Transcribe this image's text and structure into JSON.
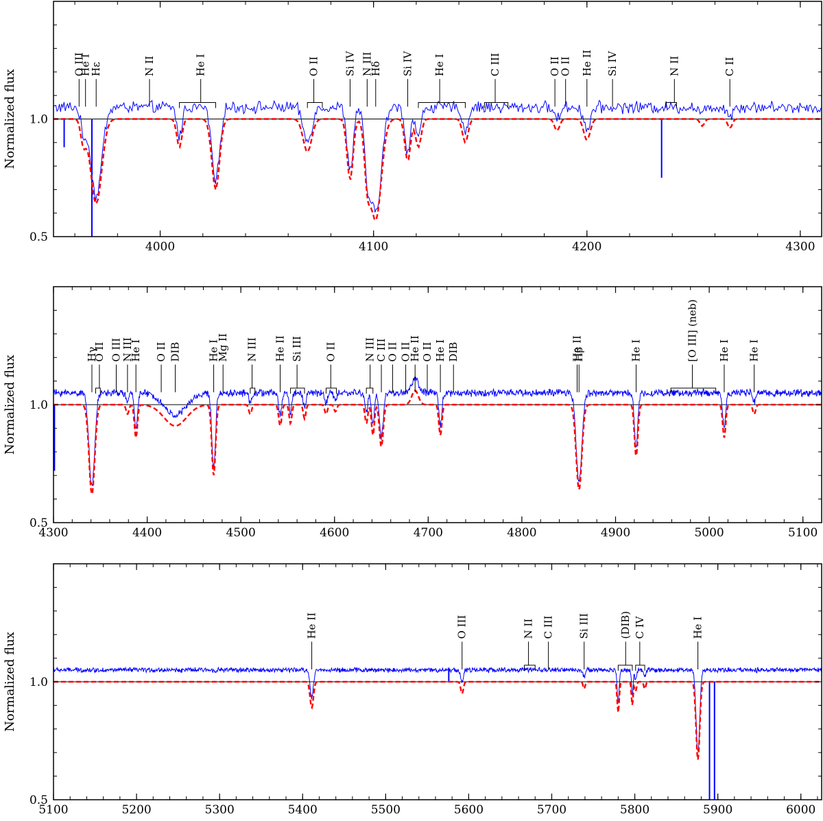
{
  "chart_data": [
    {
      "type": "line",
      "ylabel": "Normalized flux",
      "xlim": [
        3950,
        4310
      ],
      "ylim": [
        0.5,
        1.5
      ],
      "x_ticks": [
        4000,
        4100,
        4200,
        4300
      ],
      "y_ticks": [
        0.5,
        1.0
      ],
      "y_tick_labels": [
        "0.5",
        "1.0"
      ],
      "reference_level": 1.0,
      "series": [
        {
          "color": "#0000ff",
          "style": "solid"
        },
        {
          "color": "#ff0000",
          "style": "dashed"
        }
      ],
      "features": [
        {
          "center": 4026,
          "depth": 0.3,
          "width": 1.8
        },
        {
          "center": 3970,
          "depth": 0.36,
          "width": 2.6
        },
        {
          "center": 4101,
          "depth": 0.43,
          "width": 2.6
        },
        {
          "center": 4089,
          "depth": 0.26,
          "width": 1.4
        },
        {
          "center": 4097,
          "depth": 0.2,
          "width": 1.3
        },
        {
          "center": 4116,
          "depth": 0.18,
          "width": 1.3
        },
        {
          "center": 4121,
          "depth": 0.12,
          "width": 1.3
        },
        {
          "center": 4069,
          "depth": 0.14,
          "width": 2.0
        },
        {
          "center": 4009,
          "depth": 0.12,
          "width": 1.2
        },
        {
          "center": 4143,
          "depth": 0.1,
          "width": 1.3
        },
        {
          "center": 4200,
          "depth": 0.09,
          "width": 1.5
        },
        {
          "center": 4186,
          "depth": 0.05,
          "width": 1.2
        },
        {
          "center": 3964,
          "depth": 0.1,
          "width": 1.2
        },
        {
          "center": 4267,
          "depth": 0.04,
          "width": 1.0
        },
        {
          "center": 4254,
          "depth": 0.03,
          "width": 1.0
        }
      ],
      "glitches": [
        {
          "x": 3968,
          "y": 0.47
        },
        {
          "x": 4235,
          "y": 0.75
        },
        {
          "x": 3955,
          "y": 0.88
        }
      ],
      "noise_scale": 0.02,
      "annotations": [
        {
          "label": "O III",
          "x": 3962
        },
        {
          "label": "He I",
          "x": 3965
        },
        {
          "label": "Hε",
          "x": 3970
        },
        {
          "label": "N II",
          "x": 3995
        },
        {
          "label": "He I",
          "x": 4019,
          "range": [
            4009,
            4026
          ]
        },
        {
          "label": "O II",
          "x": 4072,
          "range": [
            4069,
            4076
          ]
        },
        {
          "label": "Si IV",
          "x": 4089
        },
        {
          "label": "N III",
          "x": 4097
        },
        {
          "label": "Hδ",
          "x": 4101
        },
        {
          "label": "Si IV",
          "x": 4116
        },
        {
          "label": "He I",
          "x": 4131,
          "range": [
            4121,
            4143
          ]
        },
        {
          "label": "C III",
          "x": 4157,
          "range": [
            4152,
            4163
          ]
        },
        {
          "label": "O II",
          "x": 4185
        },
        {
          "label": "O II",
          "x": 4190
        },
        {
          "label": "He II",
          "x": 4200
        },
        {
          "label": "Si IV",
          "x": 4212
        },
        {
          "label": "N II",
          "x": 4241,
          "range": [
            4237,
            4242
          ]
        },
        {
          "label": "C II",
          "x": 4267
        }
      ]
    },
    {
      "type": "line",
      "ylabel": "Normalized flux",
      "xlim": [
        4300,
        5120
      ],
      "ylim": [
        0.5,
        1.5
      ],
      "x_ticks": [
        4300,
        4400,
        4500,
        4600,
        4700,
        4800,
        4900,
        5000,
        5100
      ],
      "y_ticks": [
        0.5,
        1.0
      ],
      "y_tick_labels": [
        "0.5",
        "1.0"
      ],
      "reference_level": 1.0,
      "series": [
        {
          "color": "#0000ff",
          "style": "solid"
        },
        {
          "color": "#ff0000",
          "style": "dashed"
        }
      ],
      "features": [
        {
          "center": 4341,
          "depth": 0.38,
          "width": 3.0
        },
        {
          "center": 4471,
          "depth": 0.3,
          "width": 2.0
        },
        {
          "center": 4861,
          "depth": 0.36,
          "width": 3.0
        },
        {
          "center": 4922,
          "depth": 0.22,
          "width": 1.8
        },
        {
          "center": 5016,
          "depth": 0.14,
          "width": 1.6
        },
        {
          "center": 4388,
          "depth": 0.14,
          "width": 1.6
        },
        {
          "center": 4713,
          "depth": 0.13,
          "width": 1.6
        },
        {
          "center": 4650,
          "depth": 0.18,
          "width": 2.0
        },
        {
          "center": 4641,
          "depth": 0.13,
          "width": 1.5
        },
        {
          "center": 4634,
          "depth": 0.08,
          "width": 1.5
        },
        {
          "center": 4542,
          "depth": 0.09,
          "width": 1.6
        },
        {
          "center": 4553,
          "depth": 0.08,
          "width": 1.4
        },
        {
          "center": 4568,
          "depth": 0.06,
          "width": 1.4
        },
        {
          "center": 4430,
          "depth": 0.09,
          "width": 12.0
        },
        {
          "center": 4686,
          "depth": -0.06,
          "width": 3.5
        },
        {
          "center": 5048,
          "depth": 0.04,
          "width": 1.5
        },
        {
          "center": 4379,
          "depth": 0.04,
          "width": 1.5
        },
        {
          "center": 4510,
          "depth": 0.04,
          "width": 1.5
        },
        {
          "center": 4591,
          "depth": 0.04,
          "width": 1.5
        },
        {
          "center": 4601,
          "depth": 0.03,
          "width": 1.5
        }
      ],
      "glitches": [
        {
          "x": 4301,
          "y": 0.72
        }
      ],
      "noise_scale": 0.012,
      "annotations": [
        {
          "label": "Hγ",
          "x": 4341
        },
        {
          "label": "O II",
          "x": 4349,
          "range": [
            4345,
            4350
          ]
        },
        {
          "label": "O III",
          "x": 4367
        },
        {
          "label": "N III",
          "x": 4379
        },
        {
          "label": "He I",
          "x": 4388
        },
        {
          "label": "O II",
          "x": 4415
        },
        {
          "label": "DIB",
          "x": 4430
        },
        {
          "label": "He I",
          "x": 4471
        },
        {
          "label": "Mg II",
          "x": 4481
        },
        {
          "label": "N III",
          "x": 4512,
          "range": [
            4510,
            4515
          ]
        },
        {
          "label": "He II",
          "x": 4542
        },
        {
          "label": "Si III",
          "x": 4560,
          "range": [
            4553,
            4568
          ]
        },
        {
          "label": "O II",
          "x": 4596,
          "range": [
            4591,
            4602
          ]
        },
        {
          "label": "N III",
          "x": 4638,
          "range": [
            4634,
            4641
          ]
        },
        {
          "label": "C III",
          "x": 4650
        },
        {
          "label": "O II",
          "x": 4662
        },
        {
          "label": "O II",
          "x": 4676
        },
        {
          "label": "He II",
          "x": 4686
        },
        {
          "label": "O II",
          "x": 4699
        },
        {
          "label": "He I",
          "x": 4713
        },
        {
          "label": "DIB",
          "x": 4727
        },
        {
          "label": "He II",
          "x": 4859
        },
        {
          "label": "Hβ",
          "x": 4861
        },
        {
          "label": "He I",
          "x": 4922
        },
        {
          "label": "[O III] (neb)",
          "x": 4982,
          "range": [
            4959,
            5007
          ]
        },
        {
          "label": "He I",
          "x": 5016
        },
        {
          "label": "He I",
          "x": 5048
        }
      ]
    },
    {
      "type": "line",
      "ylabel": "Normalized flux",
      "xlim": [
        5100,
        6025
      ],
      "ylim": [
        0.5,
        1.5
      ],
      "x_ticks": [
        5100,
        5200,
        5300,
        5400,
        5500,
        5600,
        5700,
        5800,
        5900,
        6000
      ],
      "y_ticks": [
        0.5,
        1.0
      ],
      "y_tick_labels": [
        "0.5",
        "1.0"
      ],
      "reference_level": 1.0,
      "series": [
        {
          "color": "#0000ff",
          "style": "solid"
        },
        {
          "color": "#ff0000",
          "style": "dashed"
        }
      ],
      "features": [
        {
          "center": 5876,
          "depth": 0.33,
          "width": 2.2
        },
        {
          "center": 5411,
          "depth": 0.11,
          "width": 2.0
        },
        {
          "center": 5592,
          "depth": 0.05,
          "width": 1.6
        },
        {
          "center": 5780,
          "depth": 0.13,
          "width": 1.2
        },
        {
          "center": 5797,
          "depth": 0.1,
          "width": 1.0
        },
        {
          "center": 5801,
          "depth": 0.04,
          "width": 1.2
        },
        {
          "center": 5812,
          "depth": 0.03,
          "width": 1.2
        },
        {
          "center": 5739,
          "depth": 0.03,
          "width": 1.2
        }
      ],
      "glitches": [
        {
          "x": 5890,
          "y": 0.5
        },
        {
          "x": 5896,
          "y": 0.5
        },
        {
          "x": 5576,
          "y": 1.06
        }
      ],
      "noise_scale": 0.008,
      "annotations": [
        {
          "label": "He II",
          "x": 5411
        },
        {
          "label": "O III",
          "x": 5592
        },
        {
          "label": "N II",
          "x": 5672,
          "range": [
            5667,
            5680
          ]
        },
        {
          "label": "C III",
          "x": 5696
        },
        {
          "label": "Si III",
          "x": 5739
        },
        {
          "label": "(DIB)",
          "x": 5789,
          "range": [
            5780,
            5797
          ]
        },
        {
          "label": "C IV",
          "x": 5806,
          "range": [
            5801,
            5812
          ]
        },
        {
          "label": "He I",
          "x": 5876
        }
      ]
    }
  ]
}
